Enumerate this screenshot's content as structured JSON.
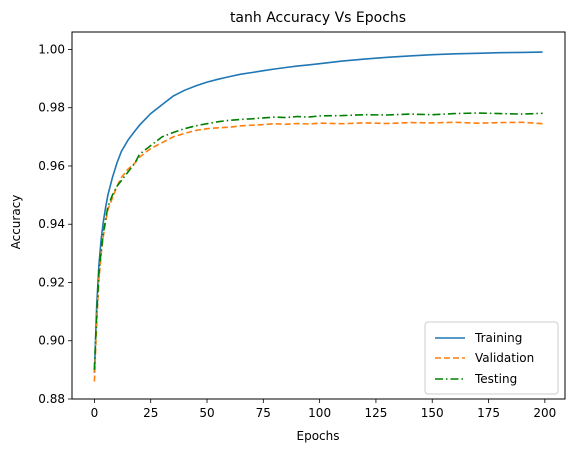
{
  "chart_data": {
    "type": "line",
    "title": "tanh Accuracy Vs Epochs",
    "xlabel": "Epochs",
    "ylabel": "Accuracy",
    "xlim": [
      -9.95,
      208.95
    ],
    "ylim": [
      0.88,
      1.006
    ],
    "xticks": [
      0,
      25,
      50,
      75,
      100,
      125,
      150,
      175,
      200
    ],
    "yticks": [
      0.88,
      0.9,
      0.92,
      0.94,
      0.96,
      0.98,
      1.0
    ],
    "xtick_labels": [
      "0",
      "25",
      "50",
      "75",
      "100",
      "125",
      "150",
      "175",
      "200"
    ],
    "ytick_labels": [
      "0.88",
      "0.90",
      "0.92",
      "0.94",
      "0.96",
      "0.98",
      "1.00"
    ],
    "legend_position": "bottom-right",
    "grid": false,
    "series": [
      {
        "name": "Training",
        "color": "#1f77b4",
        "style": "solid",
        "x": [
          0,
          1,
          2,
          3,
          4,
          5,
          6,
          8,
          10,
          12,
          15,
          18,
          20,
          25,
          30,
          35,
          40,
          45,
          50,
          55,
          60,
          65,
          70,
          75,
          80,
          85,
          90,
          95,
          100,
          110,
          120,
          130,
          140,
          150,
          160,
          170,
          180,
          190,
          199
        ],
        "y": [
          0.889,
          0.912,
          0.926,
          0.935,
          0.941,
          0.946,
          0.95,
          0.956,
          0.961,
          0.965,
          0.969,
          0.972,
          0.974,
          0.978,
          0.981,
          0.984,
          0.986,
          0.9875,
          0.9888,
          0.9898,
          0.9907,
          0.9915,
          0.9921,
          0.9927,
          0.9933,
          0.9938,
          0.9943,
          0.9947,
          0.9951,
          0.996,
          0.9967,
          0.9973,
          0.9978,
          0.9982,
          0.9985,
          0.9987,
          0.9989,
          0.999,
          0.9991
        ]
      },
      {
        "name": "Validation",
        "color": "#ff7f0e",
        "style": "dashed",
        "x": [
          0,
          1,
          2,
          3,
          4,
          5,
          6,
          8,
          10,
          12,
          15,
          18,
          20,
          25,
          30,
          35,
          40,
          45,
          50,
          55,
          60,
          65,
          70,
          75,
          80,
          85,
          90,
          95,
          100,
          110,
          120,
          130,
          140,
          150,
          160,
          170,
          180,
          190,
          199
        ],
        "y": [
          0.886,
          0.906,
          0.921,
          0.93,
          0.936,
          0.941,
          0.945,
          0.949,
          0.953,
          0.956,
          0.959,
          0.961,
          0.963,
          0.966,
          0.968,
          0.97,
          0.9712,
          0.9722,
          0.9728,
          0.9731,
          0.9733,
          0.9738,
          0.974,
          0.9742,
          0.9745,
          0.9743,
          0.9746,
          0.9744,
          0.9747,
          0.9745,
          0.9748,
          0.9746,
          0.9749,
          0.9748,
          0.975,
          0.9747,
          0.9749,
          0.975,
          0.9745
        ]
      },
      {
        "name": "Testing",
        "color": "#008000",
        "style": "dashdot",
        "x": [
          0,
          1,
          2,
          3,
          4,
          5,
          6,
          8,
          10,
          12,
          15,
          18,
          20,
          25,
          30,
          35,
          40,
          45,
          50,
          55,
          60,
          65,
          70,
          75,
          80,
          85,
          90,
          95,
          100,
          110,
          120,
          130,
          140,
          150,
          160,
          170,
          180,
          190,
          199
        ],
        "y": [
          0.89,
          0.909,
          0.923,
          0.931,
          0.937,
          0.942,
          0.946,
          0.95,
          0.953,
          0.955,
          0.958,
          0.961,
          0.964,
          0.967,
          0.97,
          0.9715,
          0.9728,
          0.9738,
          0.9745,
          0.9752,
          0.9757,
          0.976,
          0.9762,
          0.9765,
          0.9768,
          0.9766,
          0.977,
          0.9768,
          0.9772,
          0.9773,
          0.9776,
          0.9775,
          0.9778,
          0.9776,
          0.978,
          0.9782,
          0.978,
          0.9778,
          0.9781
        ]
      }
    ]
  }
}
